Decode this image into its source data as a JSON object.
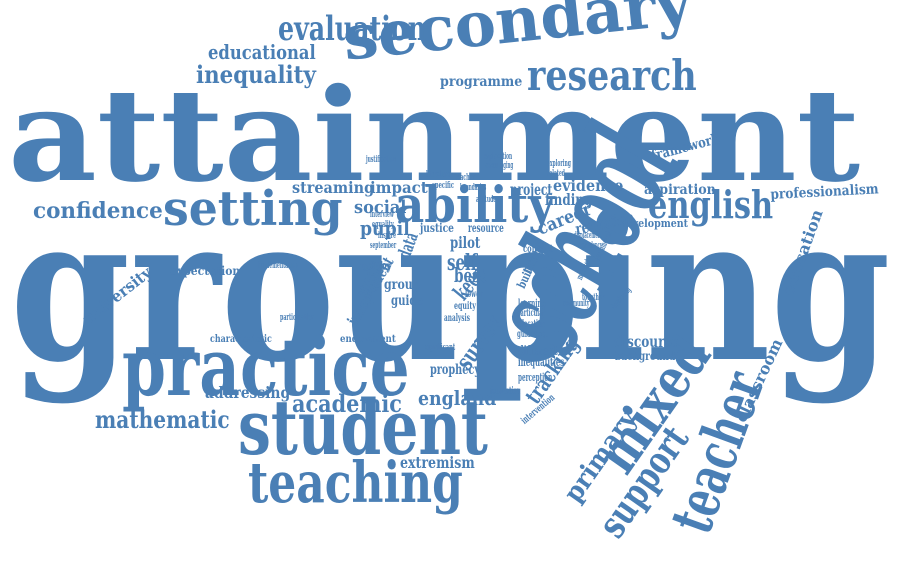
{
  "color": "#4a7fb5",
  "words": [
    {
      "key": "attainment",
      "text": "attainment"
    },
    {
      "key": "grouping",
      "text": "grouping"
    },
    {
      "key": "secondary",
      "text": "secondary"
    },
    {
      "key": "school",
      "text": "school"
    },
    {
      "key": "student",
      "text": "student"
    },
    {
      "key": "practice",
      "text": "practice"
    },
    {
      "key": "teaching",
      "text": "teaching"
    },
    {
      "key": "research",
      "text": "research"
    },
    {
      "key": "setting",
      "text": "setting"
    },
    {
      "key": "ability",
      "text": "ability"
    },
    {
      "key": "english",
      "text": "english"
    },
    {
      "key": "mixed",
      "text": "mixed"
    },
    {
      "key": "teacher",
      "text": "teacher"
    },
    {
      "key": "evaluation",
      "text": "evaluation"
    },
    {
      "key": "mathematic",
      "text": "mathematic"
    },
    {
      "key": "confidence",
      "text": "confidence"
    },
    {
      "key": "support",
      "text": "support"
    },
    {
      "key": "academic",
      "text": "academic"
    },
    {
      "key": "educational",
      "text": "educational"
    },
    {
      "key": "inequality",
      "text": "inequality"
    },
    {
      "key": "primary",
      "text": "primary"
    },
    {
      "key": "streaming",
      "text": "streaming"
    },
    {
      "key": "impact",
      "text": "impact"
    },
    {
      "key": "social",
      "text": "social"
    },
    {
      "key": "pupil",
      "text": "pupil"
    },
    {
      "key": "england",
      "text": "england"
    },
    {
      "key": "professionalism",
      "text": "professionalism"
    },
    {
      "key": "education",
      "text": "education"
    },
    {
      "key": "classroom",
      "text": "classroom"
    },
    {
      "key": "university",
      "text": "university"
    },
    {
      "key": "addressing",
      "text": "addressing"
    },
    {
      "key": "programme",
      "text": "programme"
    },
    {
      "key": "framework",
      "text": "framework"
    },
    {
      "key": "aspiration",
      "text": "aspiration"
    },
    {
      "key": "development",
      "text": "development"
    },
    {
      "key": "evidence",
      "text": "evidence"
    },
    {
      "key": "project",
      "text": "project"
    },
    {
      "key": "finding",
      "text": "finding"
    },
    {
      "key": "career",
      "text": "career"
    },
    {
      "key": "retention",
      "text": "retention"
    },
    {
      "key": "expectation",
      "text": "expectation"
    },
    {
      "key": "characteristic",
      "text": "characteristic"
    },
    {
      "key": "endowment",
      "text": "endowment"
    },
    {
      "key": "prophecy",
      "text": "prophecy"
    },
    {
      "key": "extremism",
      "text": "extremism"
    },
    {
      "key": "discourse",
      "text": "discourse"
    },
    {
      "key": "background",
      "text": "background"
    },
    {
      "key": "tracking",
      "text": "tracking"
    },
    {
      "key": "survey",
      "text": "survey"
    },
    {
      "key": "self",
      "text": "self"
    },
    {
      "key": "best",
      "text": "best"
    },
    {
      "key": "keep",
      "text": "keep"
    },
    {
      "key": "pilot",
      "text": "pilot"
    },
    {
      "key": "data",
      "text": "data"
    },
    {
      "key": "study",
      "text": "study"
    },
    {
      "key": "group",
      "text": "group"
    },
    {
      "key": "guide",
      "text": "guide"
    },
    {
      "key": "policy",
      "text": "policy"
    },
    {
      "key": "independent",
      "text": "independent"
    },
    {
      "key": "justice",
      "text": "justice"
    },
    {
      "key": "resource",
      "text": "resource"
    },
    {
      "key": "concept",
      "text": "concept"
    },
    {
      "key": "method",
      "text": "method"
    },
    {
      "key": "building",
      "text": "building"
    },
    {
      "key": "learning",
      "text": "learning"
    },
    {
      "key": "particular",
      "text": "particular"
    },
    {
      "key": "allocation",
      "text": "allocation"
    },
    {
      "key": "different",
      "text": "different"
    },
    {
      "key": "inequalities",
      "text": "inequalities"
    },
    {
      "key": "perception",
      "text": "perception"
    },
    {
      "key": "foundation",
      "text": "foundation"
    },
    {
      "key": "intervention",
      "text": "intervention"
    },
    {
      "key": "guidance",
      "text": "guidance"
    },
    {
      "key": "analysis",
      "text": "analysis"
    },
    {
      "key": "equity",
      "text": "equity"
    },
    {
      "key": "lower",
      "text": "lower"
    },
    {
      "key": "higher",
      "text": "higher"
    },
    {
      "key": "dependency",
      "text": "dependency"
    },
    {
      "key": "displacement",
      "text": "displacement"
    },
    {
      "key": "implementation",
      "text": "implementation"
    },
    {
      "key": "participation",
      "text": "participation"
    },
    {
      "key": "significant",
      "text": "significant"
    },
    {
      "key": "literature",
      "text": "literature"
    },
    {
      "key": "specific",
      "text": "specific"
    },
    {
      "key": "explanation",
      "text": "explanation"
    },
    {
      "key": "encouraging",
      "text": "encouraging"
    },
    {
      "key": "justification",
      "text": "justification"
    },
    {
      "key": "interview",
      "text": "interview"
    },
    {
      "key": "equality",
      "text": "equality"
    },
    {
      "key": "september",
      "text": "september"
    },
    {
      "key": "inspire",
      "text": "inspire"
    },
    {
      "key": "teacher2",
      "text": "teacher"
    },
    {
      "key": "boundaries",
      "text": "boundaries"
    },
    {
      "key": "attitude",
      "text": "attitude"
    },
    {
      "key": "exploring",
      "text": "exploring"
    },
    {
      "key": "related",
      "text": "related"
    },
    {
      "key": "fundamental",
      "text": "fundamental"
    },
    {
      "key": "mindset",
      "text": "mindset"
    },
    {
      "key": "developing",
      "text": "developing"
    },
    {
      "key": "together",
      "text": "together"
    },
    {
      "key": "community",
      "text": "community"
    }
  ]
}
